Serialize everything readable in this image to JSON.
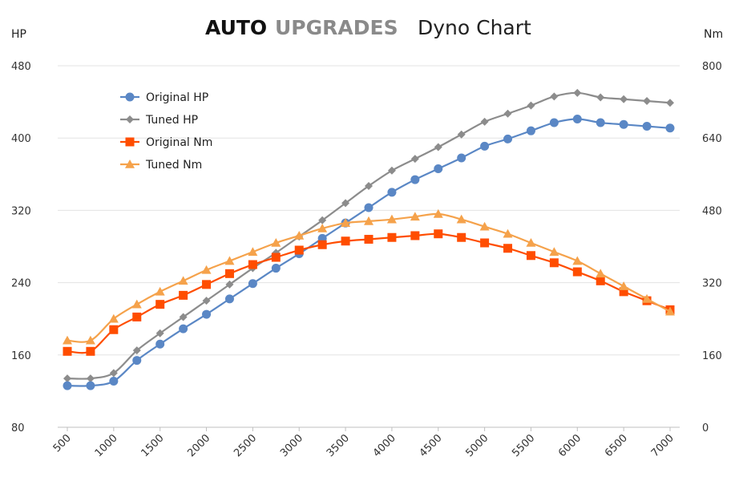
{
  "chart_data": {
    "type": "line",
    "title": {
      "brand_part1": "AUTO",
      "brand_part2": "UPGRADES",
      "main": "Dyno Chart"
    },
    "y_left_label": "HP",
    "y_right_label": "Nm",
    "y_left_lim": [
      80,
      480
    ],
    "y_right_lim": [
      0,
      800
    ],
    "y_left_ticks": [
      80,
      160,
      240,
      320,
      400,
      480
    ],
    "y_right_ticks": [
      0,
      160,
      320,
      480,
      640,
      800
    ],
    "x": [
      500,
      750,
      1000,
      1250,
      1500,
      1750,
      2000,
      2250,
      2500,
      2750,
      3000,
      3250,
      3500,
      3750,
      4000,
      4250,
      4500,
      4750,
      5000,
      5250,
      5500,
      5750,
      6000,
      6250,
      6500,
      6750,
      7000
    ],
    "x_ticks": [
      "500",
      "1000",
      "1500",
      "2000",
      "2500",
      "3000",
      "3500",
      "4000",
      "4500",
      "5000",
      "5500",
      "6000",
      "6500",
      "7000"
    ],
    "grid": true,
    "legend_position": "top-left",
    "series": [
      {
        "name": "Original HP",
        "axis": "left",
        "color": "#5a87c5",
        "marker": "circle",
        "values": [
          126,
          126,
          131,
          154,
          172,
          189,
          205,
          222,
          239,
          256,
          272,
          289,
          306,
          323,
          340,
          354,
          366,
          378,
          391,
          399,
          408,
          417,
          421,
          417,
          415,
          413,
          411
        ]
      },
      {
        "name": "Tuned HP",
        "axis": "left",
        "color": "#8c8c8c",
        "marker": "diamond",
        "values": [
          134,
          134,
          140,
          165,
          184,
          202,
          220,
          238,
          256,
          273,
          291,
          309,
          328,
          347,
          364,
          377,
          390,
          404,
          418,
          427,
          436,
          446,
          450,
          445,
          443,
          441,
          439
        ]
      },
      {
        "name": "Original Nm",
        "axis": "right",
        "color": "#ff4d00",
        "marker": "square",
        "values": [
          168,
          168,
          216,
          244,
          272,
          292,
          316,
          340,
          360,
          376,
          392,
          404,
          412,
          416,
          420,
          424,
          428,
          420,
          408,
          396,
          380,
          364,
          344,
          324,
          300,
          280,
          260
        ]
      },
      {
        "name": "Tuned Nm",
        "axis": "right",
        "color": "#f5a24b",
        "marker": "triangle",
        "values": [
          192,
          192,
          240,
          272,
          300,
          324,
          348,
          368,
          388,
          408,
          424,
          440,
          452,
          456,
          460,
          466,
          472,
          460,
          444,
          428,
          408,
          388,
          368,
          340,
          312,
          284,
          256
        ]
      }
    ]
  }
}
